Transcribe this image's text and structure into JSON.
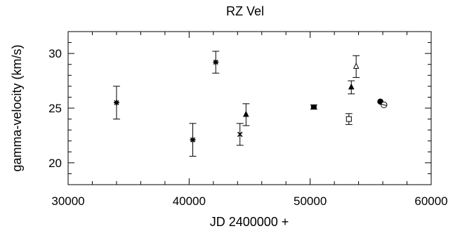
{
  "chart_data": {
    "type": "scatter",
    "title": "RZ Vel",
    "xlabel": "JD 2400000 +",
    "ylabel": "gamma-velocity (km/s)",
    "xlim": [
      30000,
      60000
    ],
    "ylim": [
      18,
      32
    ],
    "x_ticks": [
      "30000",
      "40000",
      "50000",
      "60000"
    ],
    "y_ticks": [
      "20",
      "25",
      "30"
    ],
    "grid": false,
    "points": [
      {
        "x": 34000,
        "y": 25.5,
        "err": 1.5,
        "marker": "asterisk"
      },
      {
        "x": 40300,
        "y": 22.1,
        "err": 1.5,
        "marker": "asterisk"
      },
      {
        "x": 42200,
        "y": 29.2,
        "err": 1.0,
        "marker": "asterisk"
      },
      {
        "x": 44200,
        "y": 22.6,
        "err": 1.0,
        "marker": "cross"
      },
      {
        "x": 44700,
        "y": 24.4,
        "err": 1.0,
        "marker": "filled-triangle"
      },
      {
        "x": 50300,
        "y": 25.1,
        "err": 0.2,
        "marker": "filled-square"
      },
      {
        "x": 53200,
        "y": 24.0,
        "err": 0.5,
        "marker": "open-square"
      },
      {
        "x": 53400,
        "y": 26.9,
        "err": 0.6,
        "marker": "filled-triangle"
      },
      {
        "x": 53800,
        "y": 28.8,
        "err": 1.0,
        "marker": "open-triangle"
      },
      {
        "x": 55800,
        "y": 25.6,
        "err": 0,
        "marker": "filled-circle"
      },
      {
        "x": 56100,
        "y": 25.3,
        "err": 0,
        "marker": "open-circle-slash"
      }
    ]
  }
}
